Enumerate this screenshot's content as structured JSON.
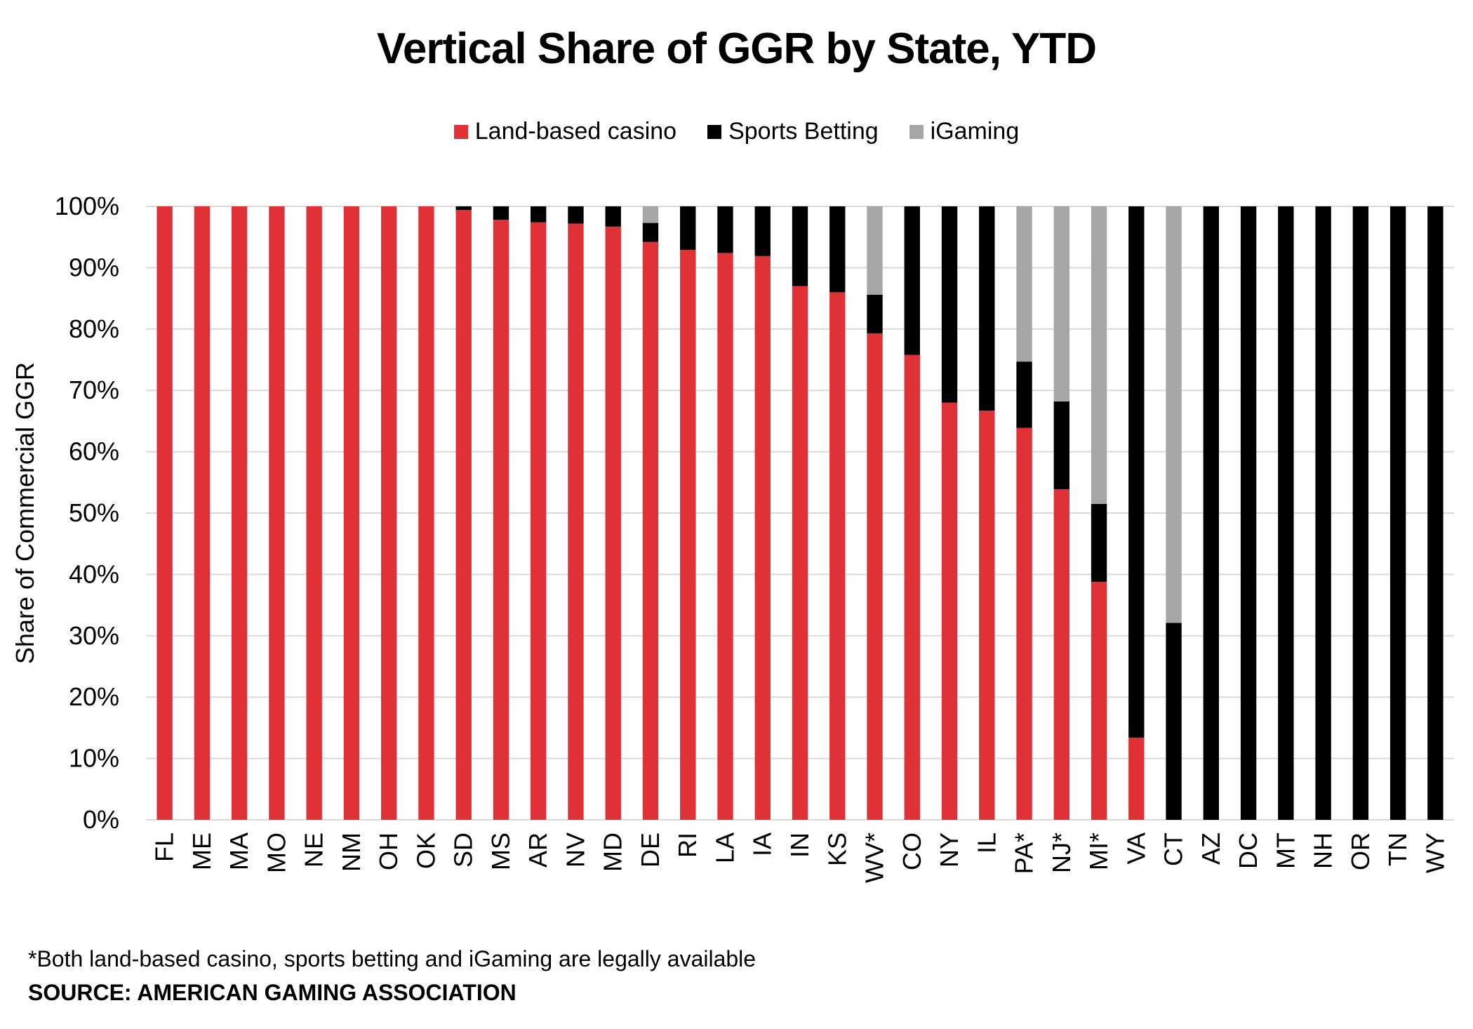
{
  "chart_data": {
    "type": "bar",
    "stacked": true,
    "title": "Vertical Share of GGR by State, YTD",
    "ylabel": "Share of Commercial GGR",
    "xlabel": "",
    "ylim": [
      0,
      100
    ],
    "yticks": [
      "0%",
      "10%",
      "20%",
      "30%",
      "40%",
      "50%",
      "60%",
      "70%",
      "80%",
      "90%",
      "100%"
    ],
    "grid": true,
    "legend_position": "top",
    "categories": [
      "FL",
      "ME",
      "MA",
      "MO",
      "NE",
      "NM",
      "OH",
      "OK",
      "SD",
      "MS",
      "AR",
      "NV",
      "MD",
      "DE",
      "RI",
      "LA",
      "IA",
      "IN",
      "KS",
      "WV*",
      "CO",
      "NY",
      "IL",
      "PA*",
      "NJ*",
      "MI*",
      "VA",
      "CT",
      "AZ",
      "DC",
      "MT",
      "NH",
      "OR",
      "TN",
      "WY"
    ],
    "series": [
      {
        "name": "Land-based casino",
        "color": "#e03236",
        "values": [
          100,
          100,
          100,
          100,
          100,
          100,
          100,
          100,
          99.4,
          97.8,
          97.4,
          97.2,
          96.7,
          94.2,
          92.9,
          92.4,
          91.9,
          87.0,
          86.0,
          79.3,
          75.8,
          68.0,
          66.7,
          63.9,
          53.9,
          38.8,
          13.4,
          0,
          0,
          0,
          0,
          0,
          0,
          0,
          0
        ]
      },
      {
        "name": "Sports Betting",
        "color": "#000000",
        "values": [
          0,
          0,
          0,
          0,
          0,
          0,
          0,
          0,
          0.6,
          2.2,
          2.6,
          2.8,
          3.3,
          3.1,
          7.1,
          7.6,
          8.1,
          13.0,
          14.0,
          6.3,
          24.2,
          32.0,
          33.3,
          10.8,
          14.3,
          12.7,
          86.6,
          32.1,
          100,
          100,
          100,
          100,
          100,
          100,
          100
        ]
      },
      {
        "name": "iGaming",
        "color": "#a6a6a6",
        "values": [
          0,
          0,
          0,
          0,
          0,
          0,
          0,
          0,
          0,
          0,
          0,
          0,
          0,
          2.7,
          0,
          0,
          0,
          0,
          0,
          14.4,
          0,
          0,
          0,
          25.3,
          31.8,
          48.5,
          0,
          67.9,
          0,
          0,
          0,
          0,
          0,
          0,
          0
        ]
      }
    ]
  },
  "footnote": "*Both land-based casino, sports betting and iGaming are legally available",
  "source": "SOURCE: AMERICAN GAMING ASSOCIATION"
}
